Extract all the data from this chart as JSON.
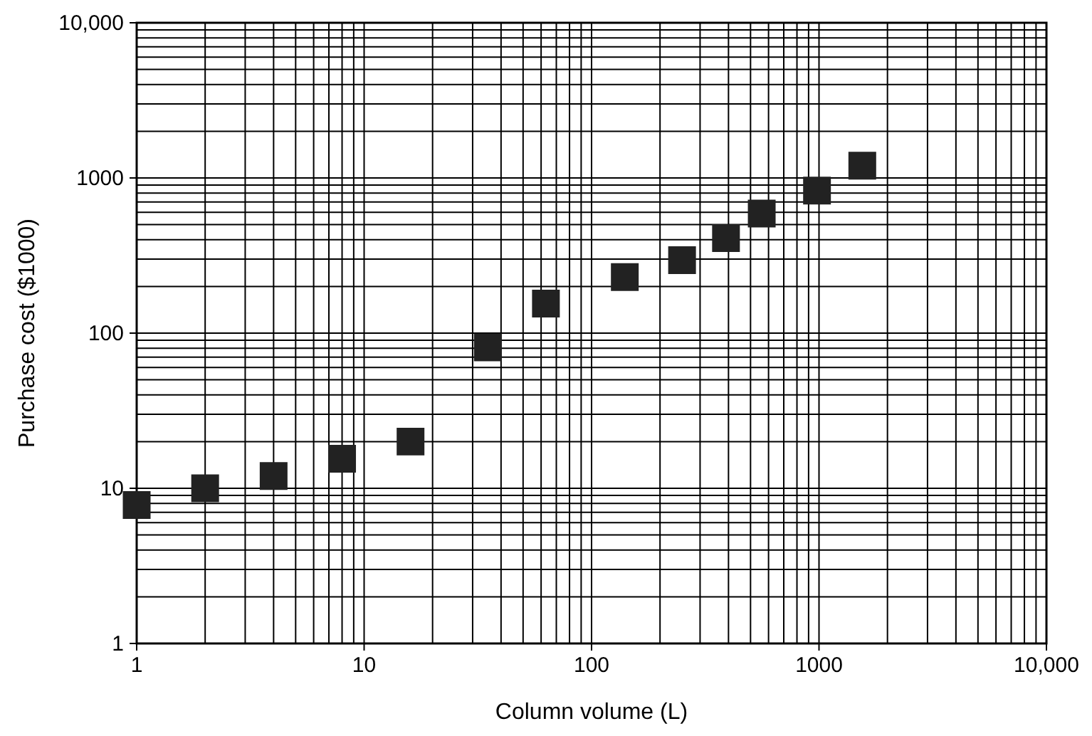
{
  "chart_data": {
    "type": "scatter",
    "xlabel": "Column volume (L)",
    "ylabel": "Purchase cost ($1000)",
    "log": "xy",
    "grid": true,
    "marker": "square",
    "xlim": [
      1,
      10000
    ],
    "ylim": [
      1,
      10000
    ],
    "xticks": [
      1,
      10,
      100,
      {
        "value": 1000,
        "label": "1000"
      },
      {
        "value": 10000,
        "label": "10,000"
      }
    ],
    "yticks": [
      1,
      10,
      100,
      {
        "value": 1000,
        "label": "1000"
      },
      {
        "value": 10000,
        "label": "10,000"
      }
    ],
    "series": [
      {
        "color": "#222222",
        "x": [
          1,
          2,
          4,
          8,
          16,
          35,
          63,
          140,
          250,
          390,
          560,
          980,
          1550
        ],
        "values": [
          7.8,
          10,
          12,
          15.5,
          20,
          81,
          155,
          230,
          295,
          410,
          590,
          830,
          1200
        ]
      }
    ]
  }
}
